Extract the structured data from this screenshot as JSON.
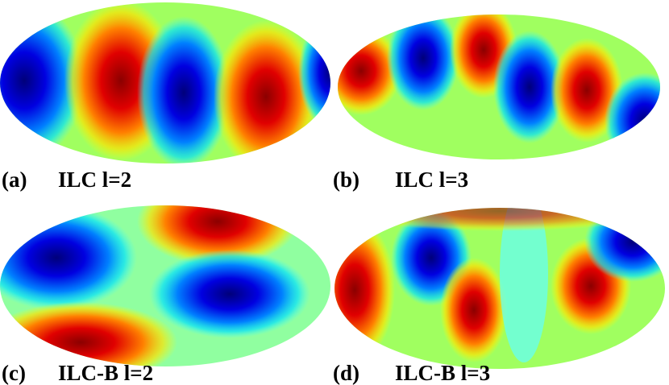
{
  "panels": [
    {
      "tag": "(a)",
      "caption": "ILC l=2"
    },
    {
      "tag": "(b)",
      "caption": "ILC l=3"
    },
    {
      "tag": "(c)",
      "caption": "ILC-B l=2"
    },
    {
      "tag": "(d)",
      "caption": "ILC-B l=3"
    }
  ]
}
